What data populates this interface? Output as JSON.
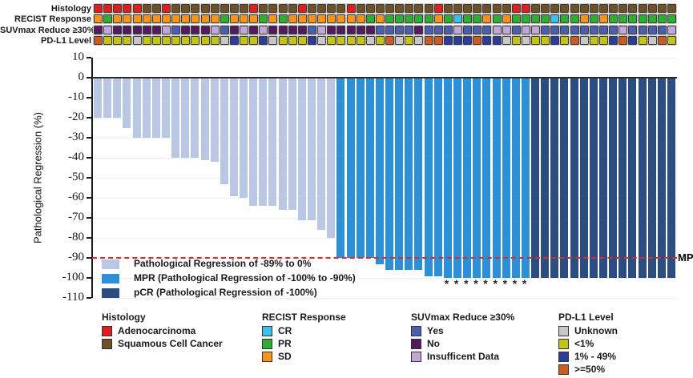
{
  "tracks": {
    "row_labels": [
      "Histology",
      "RECIST Response",
      "SUVmax Reduce ≥30%",
      "PD-L1 Level"
    ],
    "histology": [
      "A",
      "A",
      "A",
      "A",
      "A",
      "S",
      "S",
      "A",
      "S",
      "S",
      "S",
      "S",
      "S",
      "S",
      "S",
      "S",
      "A",
      "S",
      "S",
      "S",
      "S",
      "A",
      "S",
      "S",
      "S",
      "S",
      "A",
      "S",
      "S",
      "S",
      "S",
      "S",
      "S",
      "S",
      "S",
      "A",
      "S",
      "S",
      "S",
      "S",
      "S",
      "S",
      "S",
      "A",
      "A",
      "S",
      "S",
      "S",
      "S",
      "S",
      "S",
      "S",
      "S",
      "S",
      "S",
      "S",
      "S",
      "S",
      "S",
      "S"
    ],
    "recist": [
      "SD",
      "PR",
      "SD",
      "SD",
      "SD",
      "SD",
      "SD",
      "SD",
      "SD",
      "SD",
      "SD",
      "SD",
      "SD",
      "PR",
      "SD",
      "SD",
      "SD",
      "PR",
      "SD",
      "PR",
      "SD",
      "SD",
      "SD",
      "SD",
      "SD",
      "SD",
      "SD",
      "SD",
      "PR",
      "SD",
      "PR",
      "PR",
      "PR",
      "PR",
      "PR",
      "SD",
      "PR",
      "CR",
      "PR",
      "PR",
      "SD",
      "PR",
      "SD",
      "PR",
      "PR",
      "PR",
      "PR",
      "CR",
      "PR",
      "PR",
      "SD",
      "PR",
      "SD",
      "PR",
      "PR",
      "PR",
      "PR",
      "PR",
      "PR",
      "PR"
    ],
    "suvmax": [
      "N",
      "I",
      "N",
      "N",
      "N",
      "N",
      "N",
      "I",
      "Y",
      "N",
      "N",
      "N",
      "I",
      "Y",
      "N",
      "I",
      "N",
      "I",
      "N",
      "N",
      "N",
      "N",
      "Y",
      "I",
      "N",
      "N",
      "N",
      "N",
      "N",
      "Y",
      "Y",
      "Y",
      "Y",
      "N",
      "Y",
      "Y",
      "Y",
      "I",
      "Y",
      "Y",
      "Y",
      "I",
      "I",
      "Y",
      "I",
      "I",
      "Y",
      "Y",
      "Y",
      "Y",
      "Y",
      "Y",
      "Y",
      "Y",
      "I",
      "Y",
      "Y",
      "Y",
      "Y",
      "I"
    ],
    "pdl1": [
      "H",
      "L",
      "L",
      "L",
      "U",
      "L",
      "L",
      "L",
      "L",
      "L",
      "L",
      "L",
      "L",
      "U",
      "M",
      "L",
      "L",
      "M",
      "U",
      "L",
      "L",
      "L",
      "M",
      "U",
      "L",
      "L",
      "L",
      "L",
      "U",
      "L",
      "H",
      "U",
      "L",
      "U",
      "H",
      "H",
      "M",
      "M",
      "M",
      "H",
      "M",
      "M",
      "U",
      "L",
      "U",
      "L",
      "L",
      "M",
      "L",
      "H",
      "U",
      "L",
      "L",
      "M",
      "H",
      "M",
      "L",
      "U",
      "H",
      "L"
    ]
  },
  "palette": {
    "histology": {
      "A": "#e11d1d",
      "S": "#6e5126"
    },
    "recist": {
      "CR": "#3cc0ee",
      "PR": "#2fad35",
      "SD": "#f6941d"
    },
    "suvmax": {
      "Y": "#4c5fad",
      "N": "#55195f",
      "I": "#c1a6d8"
    },
    "pdl1": {
      "U": "#c7c7c7",
      "L": "#c4c414",
      "M": "#2b3c99",
      "H": "#cc5c22"
    },
    "bars": {
      "pr": "#b9c7e4",
      "mpr": "#2d8fd5",
      "pcr": "#2b4d80"
    }
  },
  "chart_data": {
    "type": "bar",
    "subtype": "waterfall",
    "ylabel": "Pathological Regression (%)",
    "ylim": [
      -110,
      10
    ],
    "yticks": [
      10,
      0,
      -10,
      -20,
      -30,
      -40,
      -50,
      -60,
      -70,
      -80,
      -90,
      -100,
      -110
    ],
    "grid": "horizontal-light",
    "values": [
      -20,
      -20,
      -20,
      -25,
      -30,
      -30,
      -30,
      -30,
      -40,
      -40,
      -40,
      -41,
      -42,
      -53,
      -59,
      -60,
      -64,
      -64,
      -64,
      -66,
      -66,
      -71,
      -71,
      -76,
      -80,
      -90,
      -90,
      -90,
      -90,
      -93,
      -96,
      -96,
      -96,
      -96,
      -99,
      -99,
      -100,
      -100,
      -100,
      -100,
      -100,
      -100,
      -100,
      -100,
      -100,
      -100,
      -100,
      -100,
      -100,
      -100,
      -100,
      -100,
      -100,
      -100,
      -100,
      -100,
      -100,
      -100,
      -100,
      -100
    ],
    "groups": [
      "pr",
      "pr",
      "pr",
      "pr",
      "pr",
      "pr",
      "pr",
      "pr",
      "pr",
      "pr",
      "pr",
      "pr",
      "pr",
      "pr",
      "pr",
      "pr",
      "pr",
      "pr",
      "pr",
      "pr",
      "pr",
      "pr",
      "pr",
      "pr",
      "pr",
      "mpr",
      "mpr",
      "mpr",
      "mpr",
      "mpr",
      "mpr",
      "mpr",
      "mpr",
      "mpr",
      "mpr",
      "mpr",
      "mpr",
      "mpr",
      "mpr",
      "mpr",
      "mpr",
      "mpr",
      "mpr",
      "mpr",
      "mpr",
      "pcr",
      "pcr",
      "pcr",
      "pcr",
      "pcr",
      "pcr",
      "pcr",
      "pcr",
      "pcr",
      "pcr",
      "pcr",
      "pcr",
      "pcr",
      "pcr",
      "pcr"
    ],
    "starred_bar_indices": [
      36,
      37,
      38,
      39,
      40,
      41,
      42,
      43,
      44
    ],
    "star_glyph": "*",
    "reference_line": {
      "y": -90,
      "label": "MPR",
      "color": "#e82525",
      "style": "dashed"
    }
  },
  "plot_legend": {
    "items": [
      {
        "label": "Pathological Regression of -89% to 0%",
        "color_key": "pr"
      },
      {
        "label": "MPR (Pathological Regression of -100% to -90%)",
        "color_key": "mpr"
      },
      {
        "label": "pCR (Pathological Regression of -100%)",
        "color_key": "pcr"
      }
    ]
  },
  "bottom_legend": {
    "groups": [
      {
        "title": "Histology",
        "items": [
          {
            "label": "Adenocarcinoma",
            "color": "#e11d1d"
          },
          {
            "label": "Squamous Cell Cancer",
            "color": "#6e5126"
          }
        ]
      },
      {
        "title": "RECIST Response",
        "items": [
          {
            "label": "CR",
            "color": "#3cc0ee"
          },
          {
            "label": "PR",
            "color": "#2fad35"
          },
          {
            "label": "SD",
            "color": "#f6941d"
          }
        ]
      },
      {
        "title": "SUVmax Reduce ≥30%",
        "items": [
          {
            "label": "Yes",
            "color": "#4c5fad"
          },
          {
            "label": "No",
            "color": "#55195f"
          },
          {
            "label": "Insufficent Data",
            "color": "#c1a6d8"
          }
        ]
      },
      {
        "title": "PD-L1 Level",
        "items": [
          {
            "label": "Unknown",
            "color": "#c7c7c7"
          },
          {
            "label": "<1%",
            "color": "#c4c414"
          },
          {
            "label": "1% - 49%",
            "color": "#2b3c99"
          },
          {
            "label": ">=50%",
            "color": "#cc5c22"
          }
        ]
      }
    ]
  }
}
